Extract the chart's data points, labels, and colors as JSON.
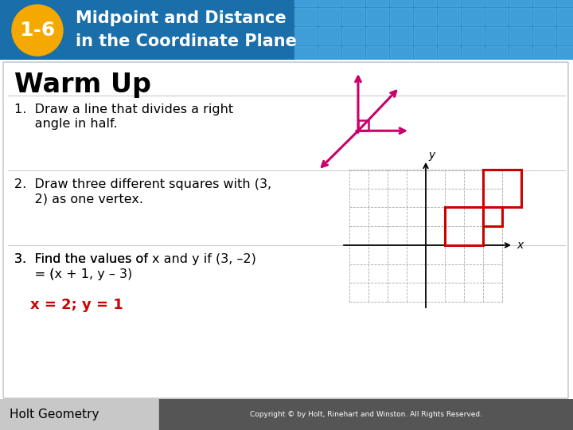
{
  "title_badge": "1-6",
  "title_line1": "Midpoint and Distance",
  "title_line2": "in the Coordinate Plane",
  "header_blue_dark": "#1a6eaa",
  "header_blue_mid": "#2585c8",
  "header_blue_light": "#4aaad8",
  "badge_color": "#f5a800",
  "body_bg_color": "#ffffff",
  "section_title": "Warm Up",
  "answer_color": "#cc0000",
  "footer_text": "Holt Geometry",
  "footer_left_bg": "#c8c8c8",
  "footer_right_bg": "#555555",
  "footer_copyright": "Copyright © by Holt, Rinehart and Winston. All Rights Reserved.",
  "magenta_color": "#c8006a",
  "red_color": "#cc0000",
  "grid_color": "#aaaaaa"
}
